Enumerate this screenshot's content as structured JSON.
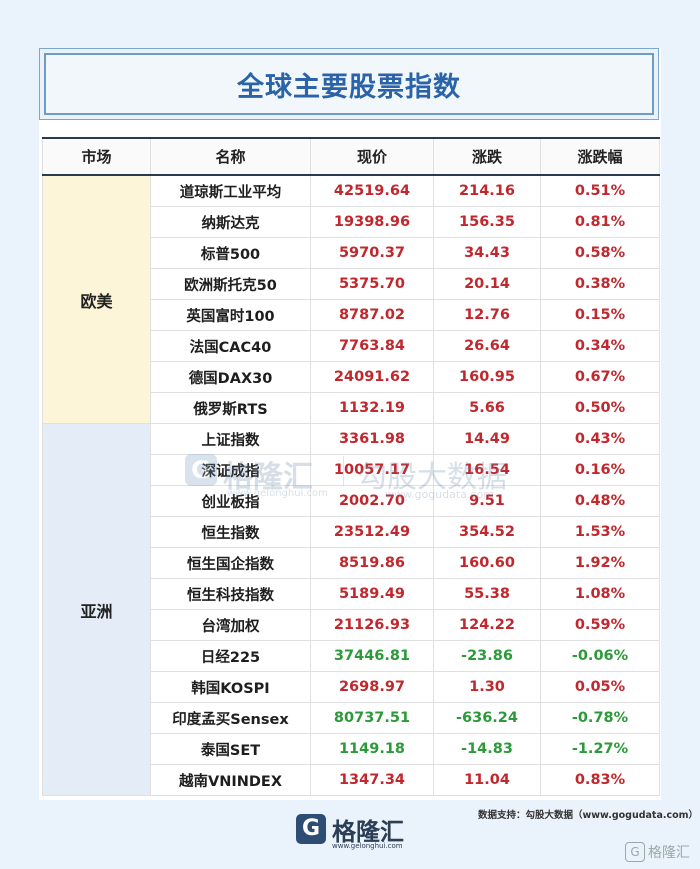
{
  "title": "全球主要股票指数",
  "headers": [
    "市场",
    "名称",
    "现价",
    "涨跌",
    "涨跌幅"
  ],
  "regions": [
    {
      "name": "欧美",
      "rows": [
        {
          "name": "道琼斯工业平均",
          "price": "42519.64",
          "change": "214.16",
          "pct": "0.51%",
          "dir": "up"
        },
        {
          "name": "纳斯达克",
          "price": "19398.96",
          "change": "156.35",
          "pct": "0.81%",
          "dir": "up"
        },
        {
          "name": "标普500",
          "price": "5970.37",
          "change": "34.43",
          "pct": "0.58%",
          "dir": "up"
        },
        {
          "name": "欧洲斯托克50",
          "price": "5375.70",
          "change": "20.14",
          "pct": "0.38%",
          "dir": "up"
        },
        {
          "name": "英国富时100",
          "price": "8787.02",
          "change": "12.76",
          "pct": "0.15%",
          "dir": "up"
        },
        {
          "name": "法国CAC40",
          "price": "7763.84",
          "change": "26.64",
          "pct": "0.34%",
          "dir": "up"
        },
        {
          "name": "德国DAX30",
          "price": "24091.62",
          "change": "160.95",
          "pct": "0.67%",
          "dir": "up"
        },
        {
          "name": "俄罗斯RTS",
          "price": "1132.19",
          "change": "5.66",
          "pct": "0.50%",
          "dir": "up"
        }
      ]
    },
    {
      "name": "亚洲",
      "rows": [
        {
          "name": "上证指数",
          "price": "3361.98",
          "change": "14.49",
          "pct": "0.43%",
          "dir": "up"
        },
        {
          "name": "深证成指",
          "price": "10057.17",
          "change": "16.54",
          "pct": "0.16%",
          "dir": "up"
        },
        {
          "name": "创业板指",
          "price": "2002.70",
          "change": "9.51",
          "pct": "0.48%",
          "dir": "up"
        },
        {
          "name": "恒生指数",
          "price": "23512.49",
          "change": "354.52",
          "pct": "1.53%",
          "dir": "up"
        },
        {
          "name": "恒生国企指数",
          "price": "8519.86",
          "change": "160.60",
          "pct": "1.92%",
          "dir": "up"
        },
        {
          "name": "恒生科技指数",
          "price": "5189.49",
          "change": "55.38",
          "pct": "1.08%",
          "dir": "up"
        },
        {
          "name": "台湾加权",
          "price": "21126.93",
          "change": "124.22",
          "pct": "0.59%",
          "dir": "up"
        },
        {
          "name": "日经225",
          "price": "37446.81",
          "change": "-23.86",
          "pct": "-0.06%",
          "dir": "down"
        },
        {
          "name": "韩国KOSPI",
          "price": "2698.97",
          "change": "1.30",
          "pct": "0.05%",
          "dir": "up"
        },
        {
          "name": "印度孟买Sensex",
          "price": "80737.51",
          "change": "-636.24",
          "pct": "-0.78%",
          "dir": "down"
        },
        {
          "name": "泰国SET",
          "price": "1149.18",
          "change": "-14.83",
          "pct": "-1.27%",
          "dir": "down"
        },
        {
          "name": "越南VNINDEX",
          "price": "1347.34",
          "change": "11.04",
          "pct": "0.83%",
          "dir": "up"
        }
      ]
    }
  ],
  "watermark": {
    "logo_glyph": "G",
    "name": "格隆汇",
    "url": "www.gelonghui.com",
    "brand2": "勾股大数据",
    "url2": "www.gogudata.com"
  },
  "source": "数据支持：勾股大数据（www.gogudata.com）",
  "footer": {
    "logo_glyph": "G",
    "name": "格隆汇",
    "url": "www.gelonghui.com"
  },
  "corner": {
    "logo_glyph": "G",
    "name": "格隆汇"
  },
  "colors": {
    "up": "#c0282d",
    "down": "#2c9a3a",
    "title": "#2b63a8",
    "eu_bg": "#fdf5d8",
    "asia_bg": "#e3ecf7"
  }
}
